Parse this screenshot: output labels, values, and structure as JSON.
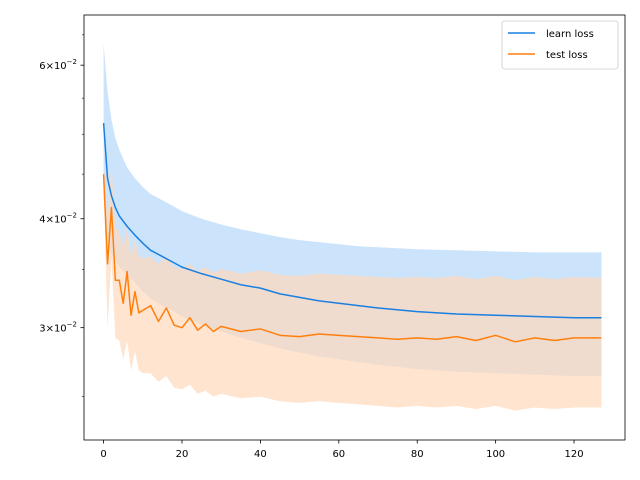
{
  "chart_data": {
    "type": "line",
    "title": "",
    "xlabel": "",
    "ylabel": "",
    "xlim": [
      -5,
      133
    ],
    "ylim": [
      0.0223,
      0.0685
    ],
    "yscale": "log",
    "xticks": [
      0,
      20,
      40,
      60,
      80,
      100,
      120
    ],
    "xtick_labels": [
      "0",
      "20",
      "40",
      "60",
      "80",
      "100",
      "120"
    ],
    "yticks": [
      0.03,
      0.04,
      0.06
    ],
    "ytick_labels": [
      {
        "base": "3",
        "sep": "×",
        "pow10": "10",
        "exp": "−2"
      },
      {
        "base": "4",
        "sep": "×",
        "pow10": "10",
        "exp": "−2"
      },
      {
        "base": "6",
        "sep": "×",
        "pow10": "10",
        "exp": "−2"
      }
    ],
    "legend_position": "top-right",
    "grid": false,
    "series": [
      {
        "name": "learn loss",
        "color": "#1a7fe0",
        "band_color": "#cce4fb",
        "x": [
          0,
          1,
          2,
          3,
          4,
          6,
          8,
          10,
          12,
          15,
          18,
          20,
          25,
          30,
          35,
          40,
          45,
          50,
          55,
          60,
          65,
          70,
          80,
          90,
          100,
          110,
          120,
          127
        ],
        "mean": [
          0.0515,
          0.0445,
          0.0425,
          0.0412,
          0.0403,
          0.0392,
          0.0383,
          0.0375,
          0.0368,
          0.0362,
          0.0356,
          0.0352,
          0.0346,
          0.0341,
          0.0336,
          0.0333,
          0.0328,
          0.0325,
          0.0322,
          0.032,
          0.0318,
          0.0316,
          0.0313,
          0.0311,
          0.031,
          0.0309,
          0.0308,
          0.0308
        ],
        "upper": [
          0.0635,
          0.056,
          0.052,
          0.0495,
          0.048,
          0.0458,
          0.0445,
          0.0435,
          0.0427,
          0.042,
          0.0413,
          0.0408,
          0.04,
          0.0394,
          0.0389,
          0.0385,
          0.0381,
          0.0378,
          0.0376,
          0.0374,
          0.0372,
          0.0371,
          0.0369,
          0.0368,
          0.0367,
          0.0366,
          0.0366,
          0.0366
        ],
        "lower": [
          0.0425,
          0.038,
          0.0365,
          0.0358,
          0.0352,
          0.0345,
          0.0338,
          0.033,
          0.0324,
          0.0318,
          0.0313,
          0.0309,
          0.0302,
          0.0297,
          0.0292,
          0.0288,
          0.0284,
          0.0281,
          0.0278,
          0.0276,
          0.0274,
          0.0272,
          0.0269,
          0.0267,
          0.0266,
          0.0265,
          0.0264,
          0.0264
        ]
      },
      {
        "name": "test loss",
        "color": "#ff7f0e",
        "band_color": "#ffd9bb",
        "x": [
          0,
          1,
          2,
          3,
          4,
          5,
          6,
          7,
          8,
          9,
          10,
          12,
          14,
          16,
          18,
          20,
          22,
          24,
          26,
          28,
          30,
          35,
          40,
          45,
          50,
          55,
          60,
          65,
          70,
          75,
          80,
          85,
          90,
          95,
          100,
          105,
          110,
          115,
          120,
          127
        ],
        "mean": [
          0.045,
          0.0355,
          0.0412,
          0.034,
          0.034,
          0.032,
          0.0348,
          0.031,
          0.033,
          0.0312,
          0.0314,
          0.0318,
          0.0305,
          0.0316,
          0.0302,
          0.03,
          0.0308,
          0.0298,
          0.0303,
          0.0297,
          0.0301,
          0.0297,
          0.0299,
          0.0294,
          0.0293,
          0.0295,
          0.0294,
          0.0293,
          0.0292,
          0.0291,
          0.0292,
          0.0291,
          0.0293,
          0.029,
          0.0294,
          0.0289,
          0.0292,
          0.029,
          0.0292,
          0.0292
        ],
        "upper": [
          0.0465,
          0.04,
          0.0462,
          0.039,
          0.0388,
          0.0372,
          0.0392,
          0.0362,
          0.0378,
          0.0363,
          0.036,
          0.0362,
          0.0355,
          0.0362,
          0.0352,
          0.035,
          0.0355,
          0.0348,
          0.0352,
          0.0347,
          0.035,
          0.0346,
          0.0349,
          0.0345,
          0.0344,
          0.0346,
          0.0345,
          0.0344,
          0.0343,
          0.0342,
          0.0343,
          0.0342,
          0.0344,
          0.0341,
          0.0344,
          0.034,
          0.0343,
          0.0341,
          0.0343,
          0.0342
        ],
        "lower": [
          0.044,
          0.03,
          0.036,
          0.0292,
          0.029,
          0.0276,
          0.029,
          0.0268,
          0.0282,
          0.0268,
          0.0266,
          0.0266,
          0.026,
          0.0264,
          0.0256,
          0.0255,
          0.0258,
          0.0252,
          0.0254,
          0.025,
          0.0252,
          0.0249,
          0.025,
          0.0247,
          0.0246,
          0.0247,
          0.0246,
          0.0245,
          0.0244,
          0.0243,
          0.0244,
          0.0243,
          0.0244,
          0.0242,
          0.0244,
          0.0241,
          0.0243,
          0.0242,
          0.0243,
          0.0243
        ]
      }
    ]
  }
}
